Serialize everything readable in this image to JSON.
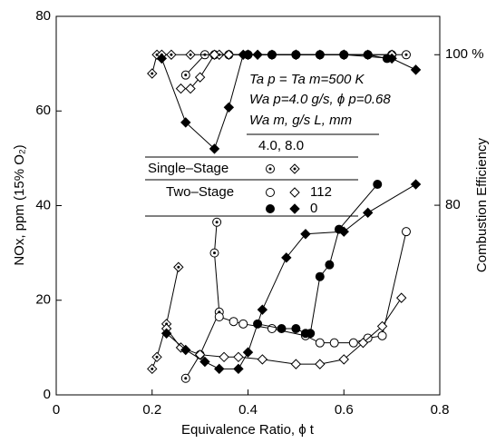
{
  "chart_data": {
    "type": "line",
    "xlabel": "Equivalence Ratio, ϕ t",
    "ylabel": "NOx, ppm (15% O₂)",
    "y2label": "Combustion Efficiency",
    "xlim": [
      0,
      0.8
    ],
    "xticks": [
      0,
      0.2,
      0.4,
      0.6,
      0.8
    ],
    "ylim": [
      0,
      80
    ],
    "yticks": [
      0,
      20,
      40,
      60,
      80
    ],
    "y2lim": [
      54.8,
      105.1
    ],
    "y2ticks": [
      80,
      {
        "value": 100,
        "label": "100 %"
      }
    ],
    "annotations": [
      "Ta p = Ta m=500 K",
      "Wa p=4.0 g/s,  ϕ p=0.68",
      "Wa m, g/s  L, mm",
      "4.0, 8.0"
    ],
    "legend": {
      "rows": [
        "Single–Stage",
        "Two–Stage"
      ],
      "columns": [
        "112",
        "0"
      ]
    },
    "series": [
      {
        "marker": "circle-dot",
        "color": "#000000",
        "x": [
          0.27,
          0.3,
          0.34,
          0.33,
          0.335
        ],
        "values": [
          3.5,
          8.5,
          17.5,
          30,
          36.5
        ]
      },
      {
        "marker": "diamond-dot",
        "color": "#000000",
        "x": [
          0.2,
          0.21,
          0.23,
          0.255
        ],
        "values": [
          5.5,
          8,
          15,
          27
        ]
      },
      {
        "marker": "circle-open",
        "color": "#000000",
        "x": [
          0.34,
          0.37,
          0.39,
          0.45,
          0.52,
          0.55,
          0.58,
          0.62,
          0.65,
          0.68,
          0.73
        ],
        "values": [
          16.5,
          15.5,
          15,
          14,
          12.5,
          11,
          11,
          11,
          12,
          12.5,
          34.5
        ]
      },
      {
        "marker": "diamond-open",
        "color": "#000000",
        "x": [
          0.23,
          0.26,
          0.3,
          0.35,
          0.38,
          0.43,
          0.5,
          0.55,
          0.6,
          0.64,
          0.68,
          0.72
        ],
        "values": [
          14,
          10,
          8.5,
          8,
          8,
          7.5,
          6.5,
          6.5,
          7.5,
          11,
          14.5,
          20.5
        ]
      },
      {
        "marker": "circle-filled",
        "color": "#000000",
        "x": [
          0.42,
          0.47,
          0.5,
          0.52,
          0.53,
          0.55,
          0.57,
          0.59,
          0.67
        ],
        "values": [
          15,
          14,
          14,
          13,
          13,
          25,
          27.5,
          35,
          44.5
        ]
      },
      {
        "marker": "diamond-filled",
        "color": "#000000",
        "x": [
          0.23,
          0.27,
          0.31,
          0.34,
          0.38,
          0.4,
          0.43,
          0.48,
          0.52,
          0.6,
          0.65,
          0.75
        ],
        "values": [
          13,
          9.5,
          7,
          5.5,
          5.5,
          9,
          18,
          29,
          34,
          34.5,
          38.5,
          44.5
        ]
      },
      {
        "marker": "circle-dot",
        "color": "#000000",
        "axis": "y2",
        "x": [
          0.27,
          0.31,
          0.33,
          0.36,
          0.4,
          0.45,
          0.5,
          0.55,
          0.6,
          0.65,
          0.7,
          0.73
        ],
        "values": [
          97.3,
          100,
          100,
          100,
          100,
          100,
          100,
          100,
          100,
          100,
          100,
          100
        ]
      },
      {
        "marker": "diamond-dot",
        "color": "#000000",
        "axis": "y2",
        "x": [
          0.2,
          0.21,
          0.22,
          0.24,
          0.28,
          0.34,
          0.4,
          0.45,
          0.5,
          0.55,
          0.6,
          0.65
        ],
        "values": [
          97.5,
          100,
          100,
          100,
          100,
          100,
          100,
          100,
          100,
          100,
          100,
          100
        ]
      },
      {
        "marker": "diamond-open",
        "color": "#000000",
        "axis": "y2",
        "x": [
          0.26,
          0.28,
          0.3,
          0.33,
          0.36,
          0.4,
          0.5,
          0.6,
          0.7
        ],
        "values": [
          95.5,
          95.5,
          97,
          100,
          100,
          100,
          100,
          100,
          100
        ]
      },
      {
        "marker": "diamond-filled",
        "color": "#000000",
        "axis": "y2",
        "x": [
          0.22,
          0.27,
          0.33,
          0.36,
          0.39,
          0.42,
          0.5,
          0.6,
          0.7,
          0.75
        ],
        "values": [
          99.5,
          91,
          87.5,
          93,
          100,
          100,
          100,
          100,
          99.5,
          98
        ]
      },
      {
        "marker": "circle-filled",
        "color": "#000000",
        "axis": "y2",
        "x": [
          0.4,
          0.45,
          0.5,
          0.55,
          0.6,
          0.65,
          0.69
        ],
        "values": [
          100,
          100,
          100,
          100,
          100,
          100,
          99.5
        ]
      }
    ]
  }
}
